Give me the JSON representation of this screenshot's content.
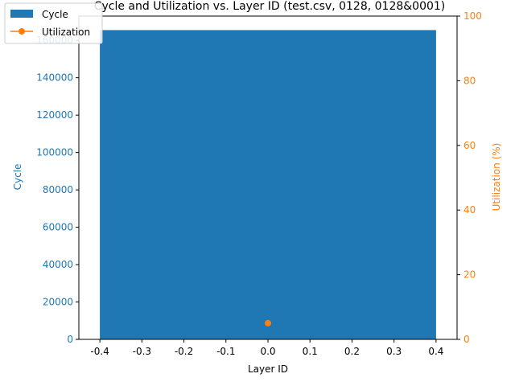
{
  "chart_data": {
    "type": "bar",
    "title": "Cycle and Utilization vs. Layer ID (test.csv, 0128, 0128&0001)",
    "xlabel": "Layer ID",
    "ylabel_left": "Cycle",
    "ylabel_right": "Utilization (%)",
    "xlim": [
      -0.45,
      0.45
    ],
    "ylim_left": [
      0,
      173000
    ],
    "ylim_right": [
      0,
      100
    ],
    "x_ticks": [
      "-0.4",
      "-0.3",
      "-0.2",
      "-0.1",
      "0.0",
      "0.1",
      "0.2",
      "0.3",
      "0.4"
    ],
    "y_left_ticks": [
      "0",
      "20000",
      "40000",
      "60000",
      "80000",
      "100000",
      "120000",
      "140000",
      "160000"
    ],
    "y_right_ticks": [
      "0",
      "20",
      "40",
      "60",
      "80",
      "100"
    ],
    "x_tick_values": [
      -0.4,
      -0.3,
      -0.2,
      -0.1,
      0.0,
      0.1,
      0.2,
      0.3,
      0.4
    ],
    "y_left_tick_values": [
      0,
      20000,
      40000,
      60000,
      80000,
      100000,
      120000,
      140000,
      160000
    ],
    "y_right_tick_values": [
      0,
      20,
      40,
      60,
      80,
      100
    ],
    "legend": {
      "placement": "top-left",
      "entries": [
        "Cycle",
        "Utilization"
      ]
    },
    "series": [
      {
        "name": "Cycle",
        "kind": "bar",
        "axis": "left",
        "color": "#1f77b4",
        "bar_width": 0.8,
        "x": [
          0
        ],
        "values": [
          165500
        ]
      },
      {
        "name": "Utilization",
        "kind": "line",
        "axis": "right",
        "color": "#ff7f0e",
        "x": [
          0
        ],
        "values": [
          5
        ]
      }
    ],
    "grid": false
  }
}
